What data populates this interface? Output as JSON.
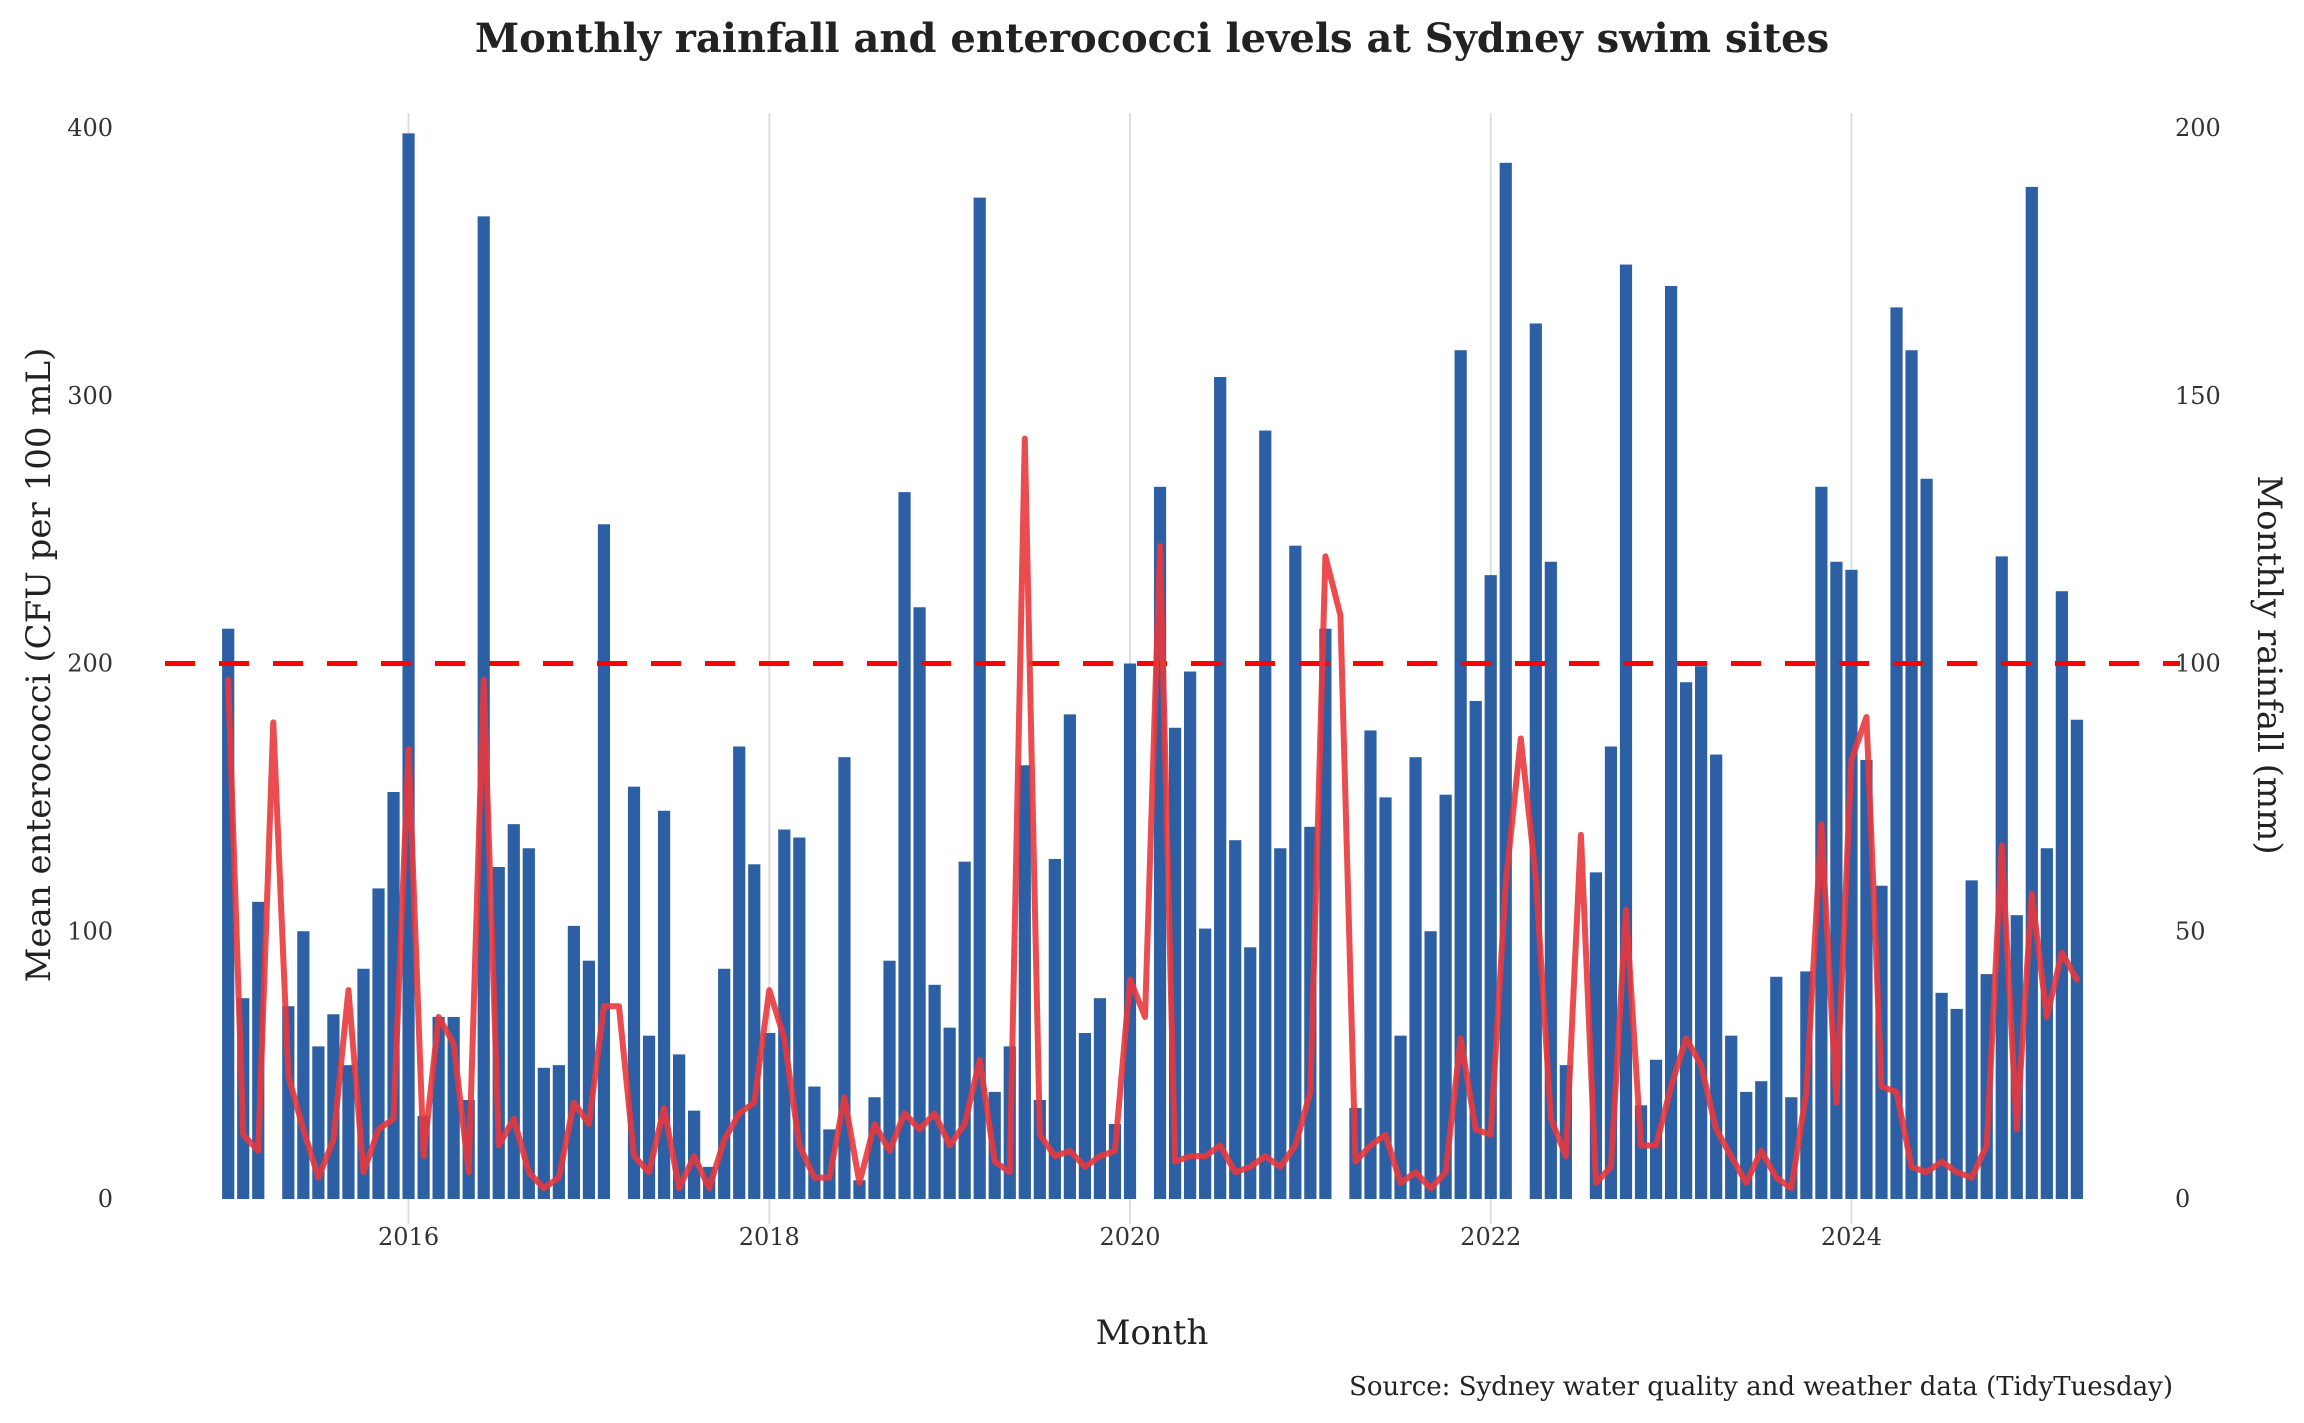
{
  "chart_data": {
    "type": "bar+line",
    "title": "Monthly rainfall and enterococci levels at Sydney swim sites",
    "xlabel": "Month",
    "ylabel": "Mean enterococci (CFU per 100 mL)",
    "y2label": "Monthly rainfall (mm)",
    "caption": "Source: Sydney water quality and weather data (TidyTuesday)",
    "ylim": [
      0,
      400
    ],
    "y2lim": [
      0,
      200
    ],
    "yticks": [
      "0",
      "100",
      "200",
      "300",
      "400"
    ],
    "y2ticks": [
      "0",
      "50",
      "100",
      "150",
      "200"
    ],
    "xticks": [
      "2016",
      "2018",
      "2020",
      "2022",
      "2024"
    ],
    "grid": "vertical",
    "threshold": {
      "value": 200,
      "axis": "left",
      "style": "dashed",
      "color": "#ff0000"
    },
    "colors": {
      "bars": "#2c5fa3",
      "line": "#e8383d",
      "threshold": "#ff0000"
    },
    "start_month": "2015-01",
    "series": [
      {
        "name": "Mean enterococci",
        "type": "bar",
        "axis": "left",
        "values": [
          213,
          75,
          111,
          null,
          72,
          100,
          57,
          69,
          50,
          86,
          116,
          152,
          398,
          31,
          68,
          68,
          37,
          367,
          124,
          140,
          131,
          49,
          50,
          102,
          89,
          252,
          null,
          154,
          61,
          145,
          54,
          33,
          12,
          86,
          169,
          125,
          62,
          138,
          135,
          42,
          26,
          165,
          7,
          38,
          89,
          264,
          221,
          80,
          64,
          126,
          374,
          40,
          57,
          162,
          37,
          127,
          181,
          62,
          75,
          28,
          200,
          null,
          266,
          176,
          197,
          101,
          307,
          134,
          94,
          287,
          131,
          244,
          139,
          213,
          null,
          34,
          175,
          150,
          61,
          165,
          100,
          151,
          317,
          186,
          233,
          387,
          null,
          327,
          238,
          50,
          null,
          122,
          169,
          349,
          35,
          52,
          341,
          193,
          199,
          166,
          61,
          40,
          44,
          83,
          38,
          85,
          266,
          238,
          235,
          164,
          117,
          333,
          317,
          269,
          77,
          71,
          119,
          84,
          240,
          106,
          378,
          131,
          227,
          179
        ]
      },
      {
        "name": "Monthly rainfall",
        "type": "line",
        "axis": "right",
        "values": [
          97,
          12,
          9,
          89,
          23,
          13,
          4,
          11,
          39,
          5,
          13,
          15,
          84,
          8,
          34,
          29,
          5,
          97,
          10,
          15,
          5,
          2,
          4,
          18,
          14,
          36,
          36,
          8,
          5,
          17,
          2,
          8,
          2,
          11,
          16,
          18,
          39,
          30,
          10,
          4,
          4,
          19,
          3,
          14,
          9,
          16,
          13,
          16,
          10,
          14,
          26,
          7,
          5,
          142,
          12,
          8,
          9,
          6,
          8,
          9,
          41,
          34,
          122,
          7,
          8,
          8,
          10,
          5,
          6,
          8,
          6,
          10,
          20,
          120,
          109,
          7,
          10,
          12,
          3,
          5,
          2,
          5,
          30,
          13,
          12,
          59,
          86,
          60,
          15,
          8,
          68,
          3,
          6,
          54,
          10,
          10,
          21,
          30,
          25,
          13,
          8,
          3,
          9,
          4,
          2,
          20,
          70,
          18,
          82,
          90,
          21,
          20,
          6,
          5,
          7,
          5,
          4,
          10,
          66,
          13,
          57,
          34,
          46,
          41
        ]
      }
    ]
  }
}
